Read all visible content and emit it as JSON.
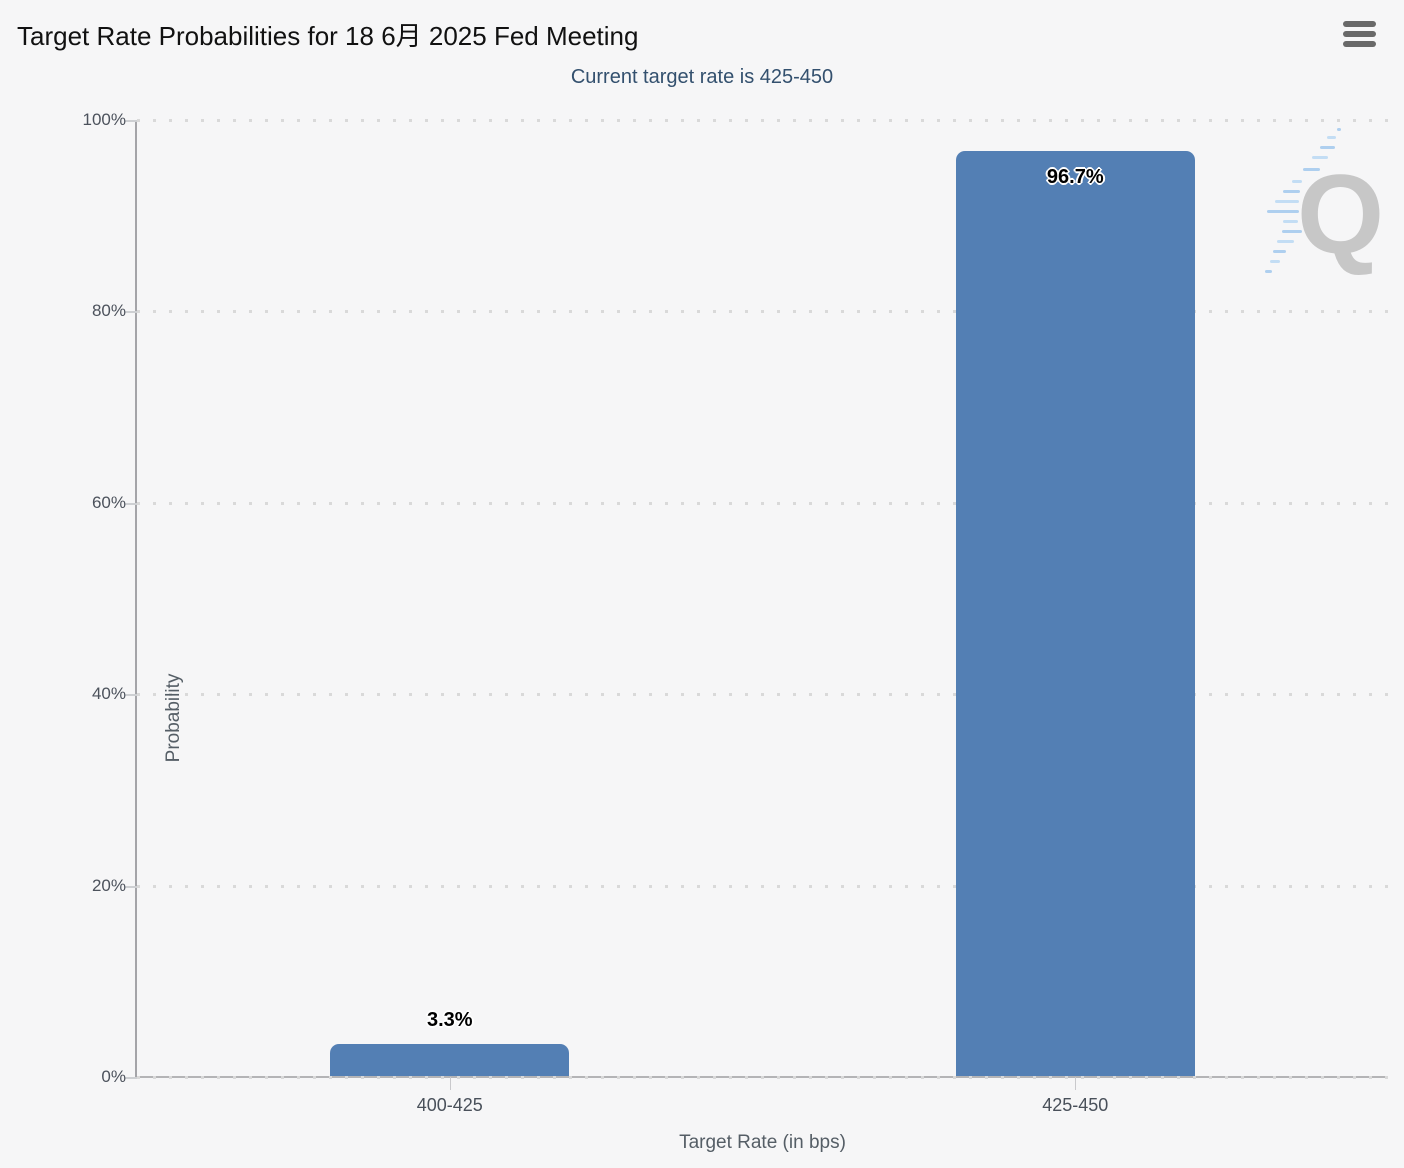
{
  "page": {
    "background": "#f6f6f7"
  },
  "header": {
    "title": "Target Rate Probabilities for 18 6月 2025 Fed Meeting",
    "menu_icon": "hamburger-menu"
  },
  "chart_data": {
    "type": "bar",
    "title": "Target Rate Probabilities for 18 6月 2025 Fed Meeting",
    "subtitle": "Current target rate is 425-450",
    "categories": [
      "400-425",
      "425-450"
    ],
    "values": [
      3.3,
      96.7
    ],
    "value_labels": [
      "3.3%",
      "96.7%"
    ],
    "xlabel": "Target Rate (in bps)",
    "ylabel": "Probability",
    "ylim": [
      0,
      100
    ],
    "yticks": [
      0,
      20,
      40,
      60,
      80,
      100
    ],
    "ytick_labels": [
      "0%",
      "20%",
      "40%",
      "60%",
      "80%",
      "100%"
    ],
    "grid": "dotted-horizontal",
    "legend": "none",
    "bar_color": "#537fb4"
  },
  "watermark": {
    "letter": "Q"
  }
}
